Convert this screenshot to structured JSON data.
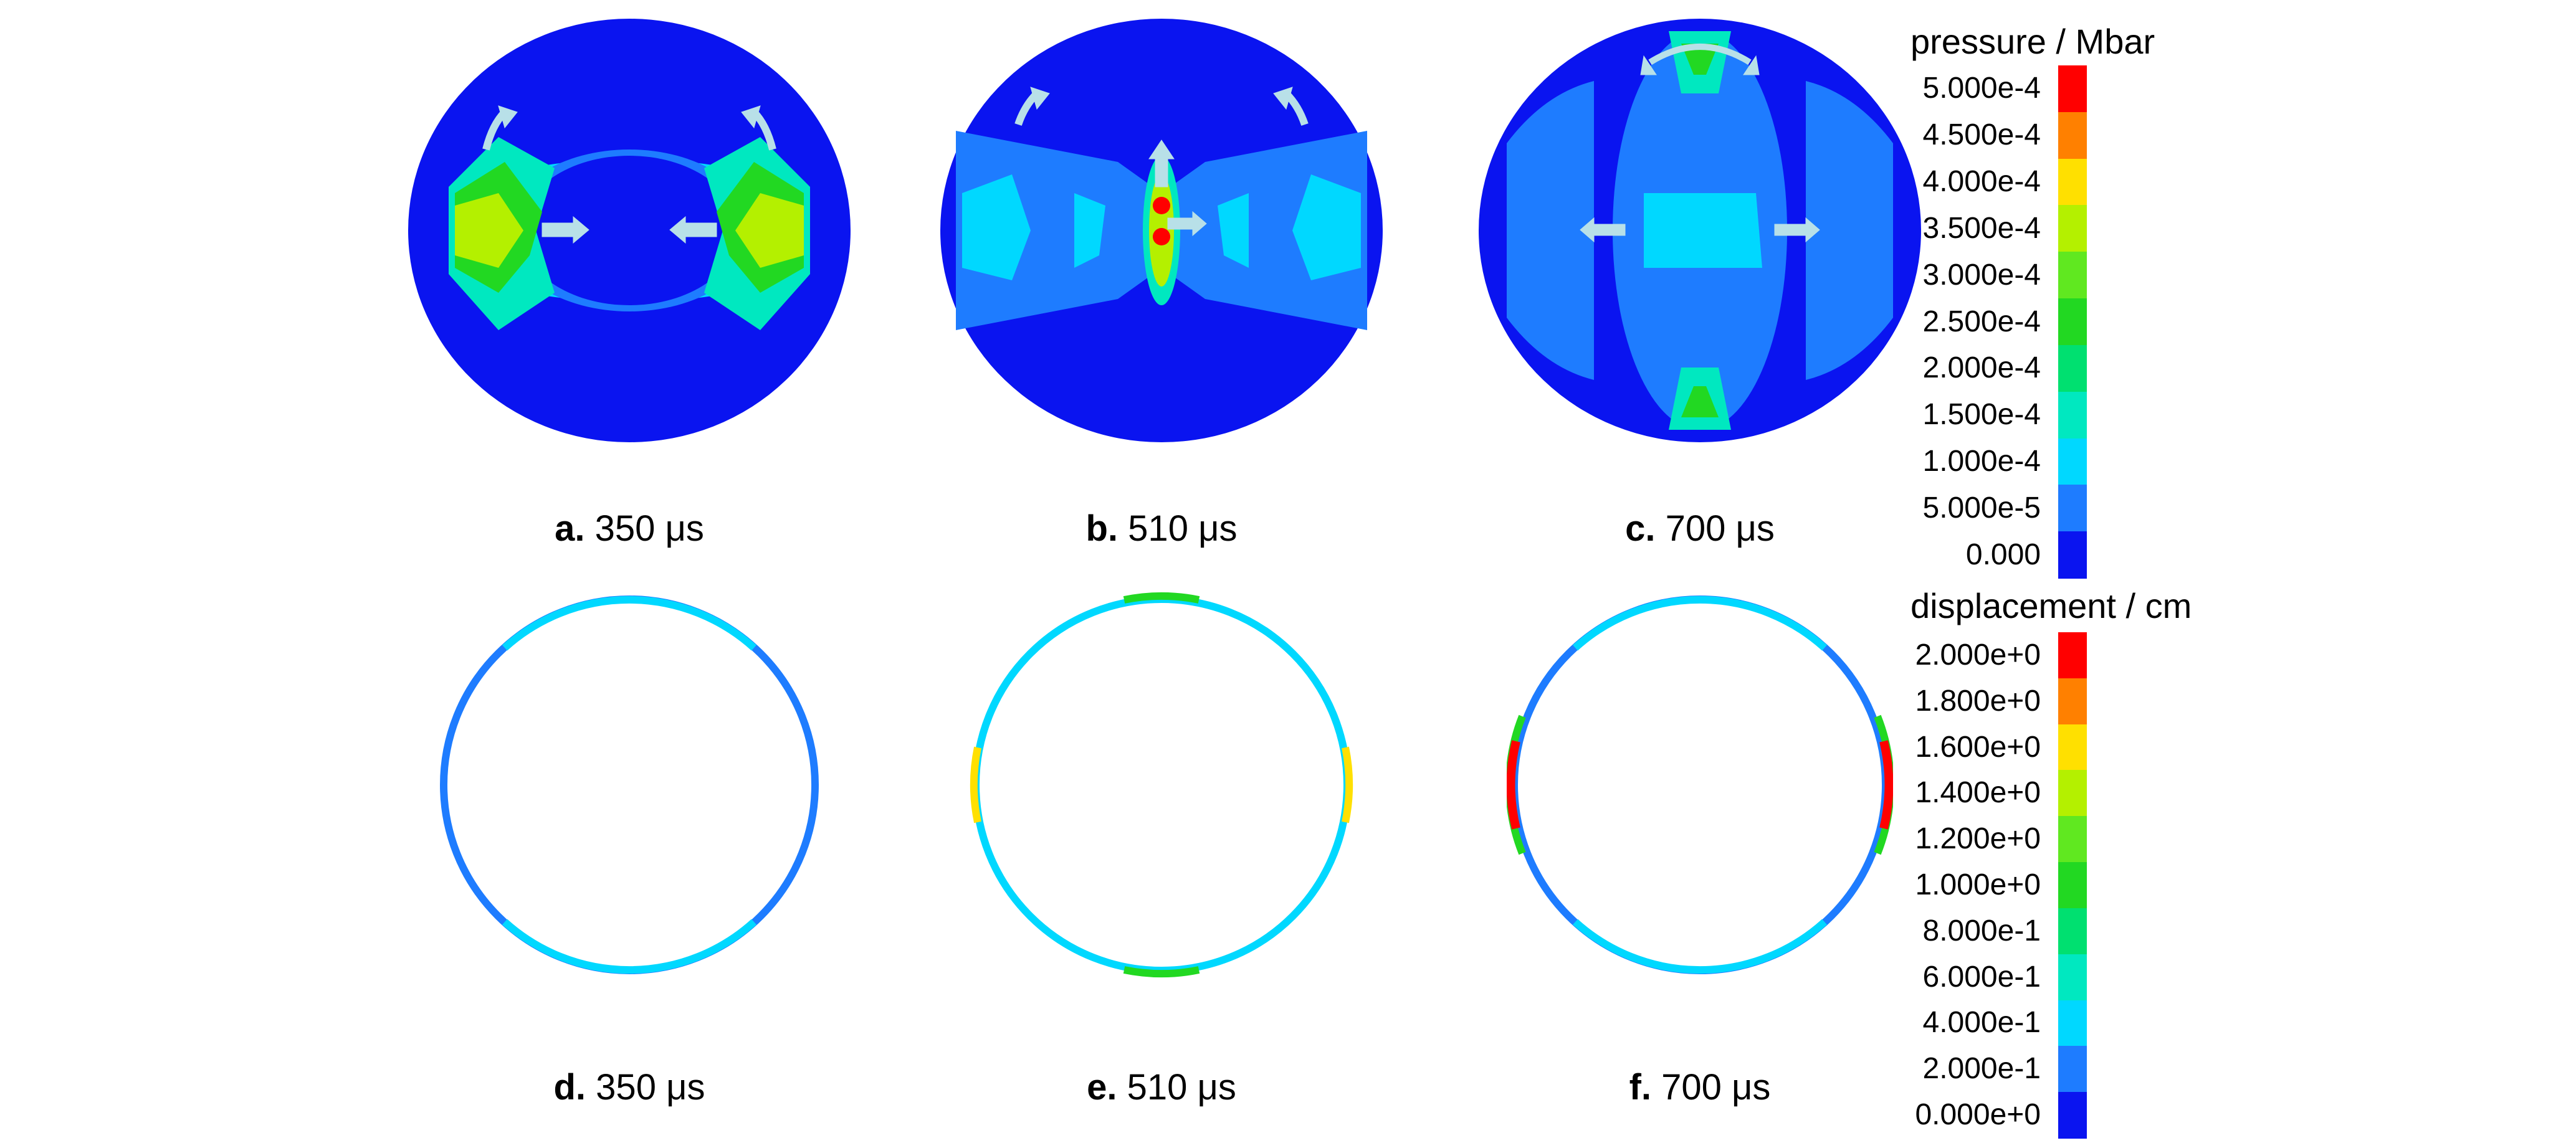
{
  "panels": [
    {
      "id": "a",
      "letter": "a.",
      "time": "350 μs",
      "kind": "pressure"
    },
    {
      "id": "b",
      "letter": "b.",
      "time": "510 μs",
      "kind": "pressure"
    },
    {
      "id": "c",
      "letter": "c.",
      "time": "700 μs",
      "kind": "pressure"
    },
    {
      "id": "d",
      "letter": "d.",
      "time": "350 μs",
      "kind": "displacement"
    },
    {
      "id": "e",
      "letter": "e.",
      "time": "510 μs",
      "kind": "displacement"
    },
    {
      "id": "f",
      "letter": "f.",
      "time": "700 μs",
      "kind": "displacement"
    }
  ],
  "colorbars": {
    "pressure": {
      "title": "pressure / Mbar",
      "labels": [
        "5.000e-4",
        "4.500e-4",
        "4.000e-4",
        "3.500e-4",
        "3.000e-4",
        "2.500e-4",
        "2.000e-4",
        "1.500e-4",
        "1.000e-4",
        "5.000e-5",
        "0.000"
      ],
      "colors": [
        "#ff0000",
        "#ff8000",
        "#ffe000",
        "#b4f000",
        "#60e820",
        "#22d822",
        "#00e070",
        "#00e8c0",
        "#00d8ff",
        "#1e7cff",
        "#0a14f0"
      ]
    },
    "displacement": {
      "title": "displacement / cm",
      "labels": [
        "2.000e+0",
        "1.800e+0",
        "1.600e+0",
        "1.400e+0",
        "1.200e+0",
        "1.000e+0",
        "8.000e-1",
        "6.000e-1",
        "4.000e-1",
        "2.000e-1",
        "0.000e+0"
      ],
      "colors": [
        "#ff0000",
        "#ff8000",
        "#ffe000",
        "#b4f000",
        "#60e820",
        "#22d822",
        "#00e070",
        "#00e8c0",
        "#00d8ff",
        "#1e7cff",
        "#0a14f0"
      ]
    }
  },
  "arrow_color": "#b8e0e8"
}
